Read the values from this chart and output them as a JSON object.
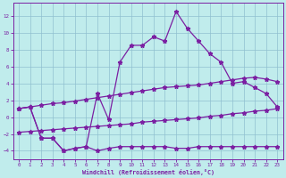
{
  "xlabel": "Windchill (Refroidissement éolien,°C)",
  "background_color": "#c0ecec",
  "grid_color": "#90c0d0",
  "line_color": "#7b1fa2",
  "xlim_min": -0.5,
  "xlim_max": 23.5,
  "ylim_min": -5.0,
  "ylim_max": 13.5,
  "xticks": [
    0,
    1,
    2,
    3,
    4,
    5,
    6,
    7,
    8,
    9,
    10,
    11,
    12,
    13,
    14,
    15,
    16,
    17,
    18,
    19,
    20,
    21,
    22,
    23
  ],
  "yticks": [
    -4,
    -2,
    0,
    2,
    4,
    6,
    8,
    10,
    12
  ],
  "line_main_y": [
    1.0,
    1.2,
    -2.5,
    -2.5,
    -4.0,
    -3.7,
    -3.5,
    2.8,
    -0.3,
    6.5,
    8.5,
    8.5,
    9.5,
    9.0,
    12.5,
    10.5,
    9.0,
    7.5,
    6.5,
    4.0,
    4.2,
    3.5,
    2.8,
    1.2
  ],
  "line_diag_hi_y": [
    1.0,
    1.2,
    1.4,
    1.6,
    1.7,
    1.9,
    2.1,
    2.3,
    2.5,
    2.7,
    2.9,
    3.1,
    3.3,
    3.5,
    3.6,
    3.7,
    3.8,
    4.0,
    4.2,
    4.4,
    4.6,
    4.7,
    4.5,
    4.2
  ],
  "line_diag_lo_y": [
    -1.8,
    -1.7,
    -1.6,
    -1.5,
    -1.4,
    -1.3,
    -1.2,
    -1.1,
    -1.0,
    -0.9,
    -0.8,
    -0.6,
    -0.5,
    -0.4,
    -0.3,
    -0.2,
    -0.1,
    0.1,
    0.2,
    0.4,
    0.5,
    0.7,
    0.8,
    1.0
  ],
  "line_bot_y": [
    1.0,
    1.2,
    -2.5,
    -2.5,
    -4.0,
    -3.7,
    -3.5,
    -4.0,
    -3.7,
    -3.5,
    -3.5,
    -3.5,
    -3.5,
    -3.5,
    -3.7,
    -3.7,
    -3.5,
    -3.5,
    -3.5,
    -3.5,
    -3.5,
    -3.5,
    -3.5,
    -3.5
  ]
}
